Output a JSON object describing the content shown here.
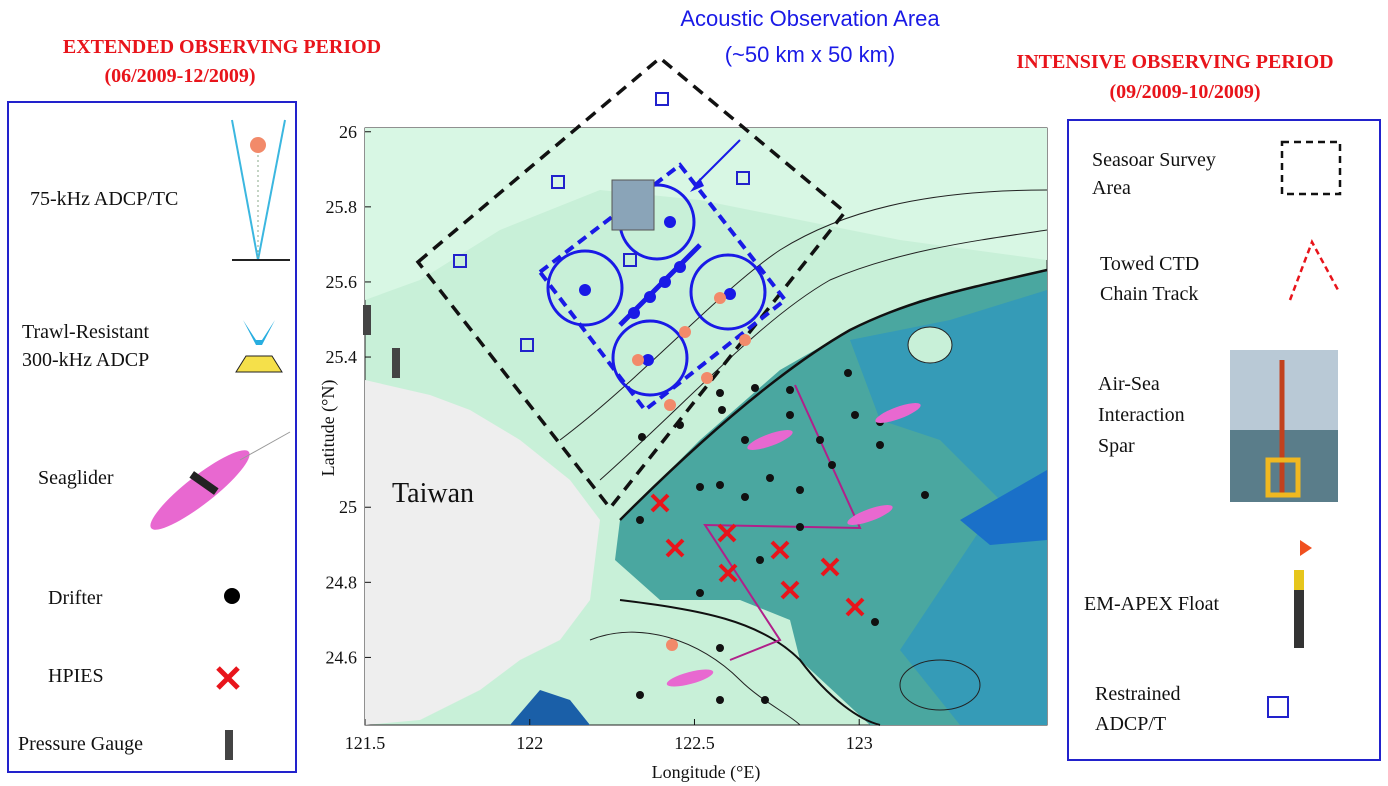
{
  "header": {
    "left_title": "EXTENDED OBSERVING PERIOD",
    "left_period": "(06/2009-12/2009)",
    "right_title": "INTENSIVE OBSERVING PERIOD",
    "right_period": "(09/2009-10/2009)",
    "acoustic_title": "Acoustic Observation Area",
    "acoustic_size": "(~50 km x 50 km)"
  },
  "left_legend": {
    "items": [
      {
        "lines": [
          "75-kHz ADCP/TC"
        ]
      },
      {
        "lines": [
          "Trawl-Resistant",
          "300-kHz ADCP"
        ]
      },
      {
        "lines": [
          "Seaglider"
        ]
      },
      {
        "lines": [
          "Drifter"
        ]
      },
      {
        "lines": [
          "HPIES"
        ]
      },
      {
        "lines": [
          "Pressure Gauge"
        ]
      }
    ]
  },
  "right_legend": {
    "items": [
      {
        "lines": [
          "Seasoar Survey",
          "Area"
        ]
      },
      {
        "lines": [
          "Towed CTD",
          "Chain Track"
        ]
      },
      {
        "lines": [
          "Air-Sea",
          "Interaction",
          "Spar"
        ]
      },
      {
        "lines": [
          "EM-APEX Float"
        ]
      },
      {
        "lines": [
          "Restrained",
          "ADCP/T"
        ]
      }
    ]
  },
  "map": {
    "place_label": "Taiwan",
    "xlabel": "Longitude (°E)",
    "ylabel": "Latitude (°N)",
    "xlim": [
      121.5,
      123.57
    ],
    "ylim": [
      24.42,
      26.01
    ],
    "xticks": [
      121.5,
      122,
      122.5,
      123
    ],
    "yticks": [
      24.6,
      24.8,
      25,
      25.4,
      25.6,
      25.8,
      26
    ]
  }
}
